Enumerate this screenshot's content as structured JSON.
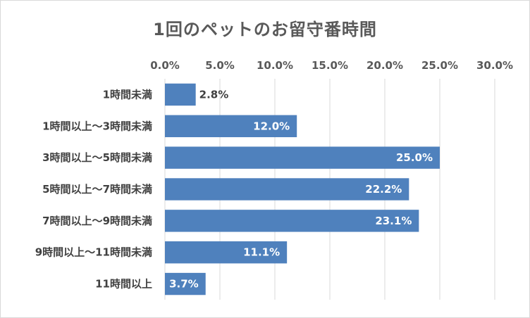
{
  "chart_data": {
    "type": "bar",
    "orientation": "horizontal",
    "title": "1回のペットのお留守番時間",
    "categories": [
      "1時間未満",
      "1時間以上～3時間未満",
      "3時間以上～5時間未満",
      "5時間以上～7時間未満",
      "7時間以上～9時間未満",
      "9時間以上～11時間未満",
      "11時間以上"
    ],
    "values": [
      2.8,
      12.0,
      25.0,
      22.2,
      23.1,
      11.1,
      3.7
    ],
    "value_labels": [
      "2.8%",
      "12.0%",
      "25.0%",
      "22.2%",
      "23.1%",
      "11.1%",
      "3.7%"
    ],
    "xlim": [
      0,
      30
    ],
    "ticks": [
      0,
      5,
      10,
      15,
      20,
      25,
      30
    ],
    "tick_labels": [
      "0.0%",
      "5.0%",
      "10.0%",
      "15.0%",
      "20.0%",
      "25.0%",
      "30.0%"
    ],
    "xaxis_position": "top",
    "grid": true,
    "legend": "none",
    "bar_color": "#4f81bd",
    "grid_color": "#d9d9d9"
  }
}
